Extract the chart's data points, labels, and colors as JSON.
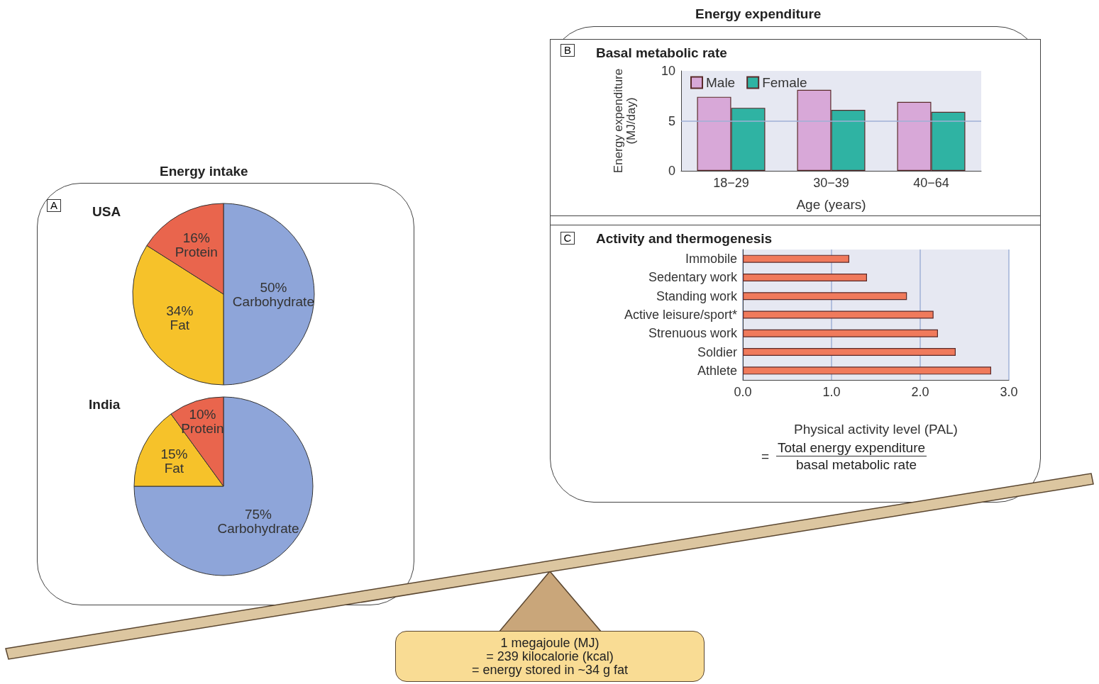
{
  "chart_data": [
    {
      "type": "pie",
      "title": "USA",
      "categories": [
        "Carbohydrate",
        "Fat",
        "Protein"
      ],
      "values": [
        50,
        34,
        16
      ],
      "value_labels": [
        "50%",
        "34%",
        "16%"
      ],
      "colors": [
        "#8ea5d9",
        "#f6c22a",
        "#e9654d"
      ],
      "annotations": [
        "Energy intake",
        "A"
      ]
    },
    {
      "type": "pie",
      "title": "India",
      "categories": [
        "Carbohydrate",
        "Fat",
        "Protein"
      ],
      "values": [
        75,
        15,
        10
      ],
      "value_labels": [
        "75%",
        "15%",
        "10%"
      ],
      "colors": [
        "#8ea5d9",
        "#f6c22a",
        "#e9654d"
      ]
    },
    {
      "type": "bar",
      "title": "Basal metabolic rate",
      "categories": [
        "18−29",
        "30−39",
        "40−64"
      ],
      "xlabel": "Age (years)",
      "ylabel": "Energy expenditure\n(MJ/day)",
      "ylim": [
        0,
        10
      ],
      "yticks": [
        0,
        5,
        10
      ],
      "ref_lines": [
        {
          "axis": "y",
          "value": 5,
          "color": "#9fb0d6"
        }
      ],
      "legend": "top left",
      "annotations": [
        "Energy expenditure",
        "B"
      ],
      "series": [
        {
          "name": "Male",
          "color": "#d8a8d8",
          "values": [
            7.4,
            8.1,
            6.9
          ]
        },
        {
          "name": "Female",
          "color": "#2fb3a3",
          "values": [
            6.3,
            6.1,
            5.9
          ]
        }
      ]
    },
    {
      "type": "bar",
      "orientation": "horizontal",
      "title": "Activity and thermogenesis",
      "categories": [
        "Immobile",
        "Sedentary work",
        "Standing work",
        "Active leisure/sport*",
        "Strenuous work",
        "Soldier",
        "Athlete"
      ],
      "values": [
        1.2,
        1.4,
        1.85,
        2.15,
        2.2,
        2.4,
        2.8
      ],
      "color": "#f07a5c",
      "xlabel": "Physical activity level (PAL)",
      "xlim": [
        0,
        3
      ],
      "xticks": [
        {
          "value": 0,
          "label": "0.0"
        },
        {
          "value": 1,
          "label": "1.0"
        },
        {
          "value": 2,
          "label": "2.0"
        },
        {
          "value": 3,
          "label": "3.0"
        }
      ],
      "grid": "x",
      "annotations": [
        "C",
        "=",
        "Total energy expenditure",
        "basal metabolic rate",
        "1 megajoule (MJ)",
        "= 239 kilocalorie (kcal)",
        "= energy stored in ~34 g fat"
      ]
    }
  ]
}
